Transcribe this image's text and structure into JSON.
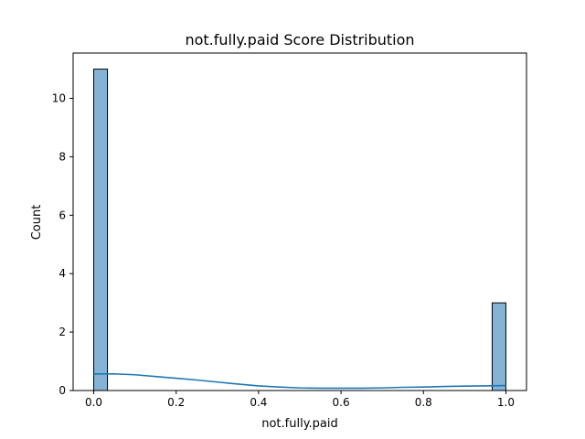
{
  "chart_data": {
    "type": "bar",
    "title": "not.fully.paid Score Distribution",
    "xlabel": "not.fully.paid",
    "ylabel": "Count",
    "xlim": [
      -0.05,
      1.05
    ],
    "ylim": [
      0,
      11.55
    ],
    "xticks": [
      "0.0",
      "0.2",
      "0.4",
      "0.6",
      "0.8",
      "1.0"
    ],
    "xtick_values": [
      0,
      0.2,
      0.4,
      0.6,
      0.8,
      1.0
    ],
    "yticks": [
      "0",
      "2",
      "4",
      "6",
      "8",
      "10"
    ],
    "ytick_values": [
      0,
      2,
      4,
      6,
      8,
      10
    ],
    "bins": [
      {
        "x0": 0.0,
        "x1": 0.0333,
        "count": 11
      },
      {
        "x0": 0.9667,
        "x1": 1.0,
        "count": 3
      }
    ],
    "kde": {
      "x": [
        0.0,
        0.05,
        0.1,
        0.15,
        0.2,
        0.25,
        0.3,
        0.35,
        0.4,
        0.45,
        0.5,
        0.55,
        0.6,
        0.65,
        0.7,
        0.75,
        0.8,
        0.85,
        0.9,
        0.95,
        1.0
      ],
      "y": [
        0.57,
        0.57,
        0.54,
        0.48,
        0.42,
        0.36,
        0.29,
        0.22,
        0.16,
        0.12,
        0.09,
        0.08,
        0.08,
        0.08,
        0.09,
        0.11,
        0.12,
        0.14,
        0.15,
        0.16,
        0.17
      ]
    },
    "grid": false,
    "colors": {
      "bar_fill": "#86b3d5",
      "bar_edge": "#000000",
      "kde_line": "#1f77b4"
    }
  }
}
